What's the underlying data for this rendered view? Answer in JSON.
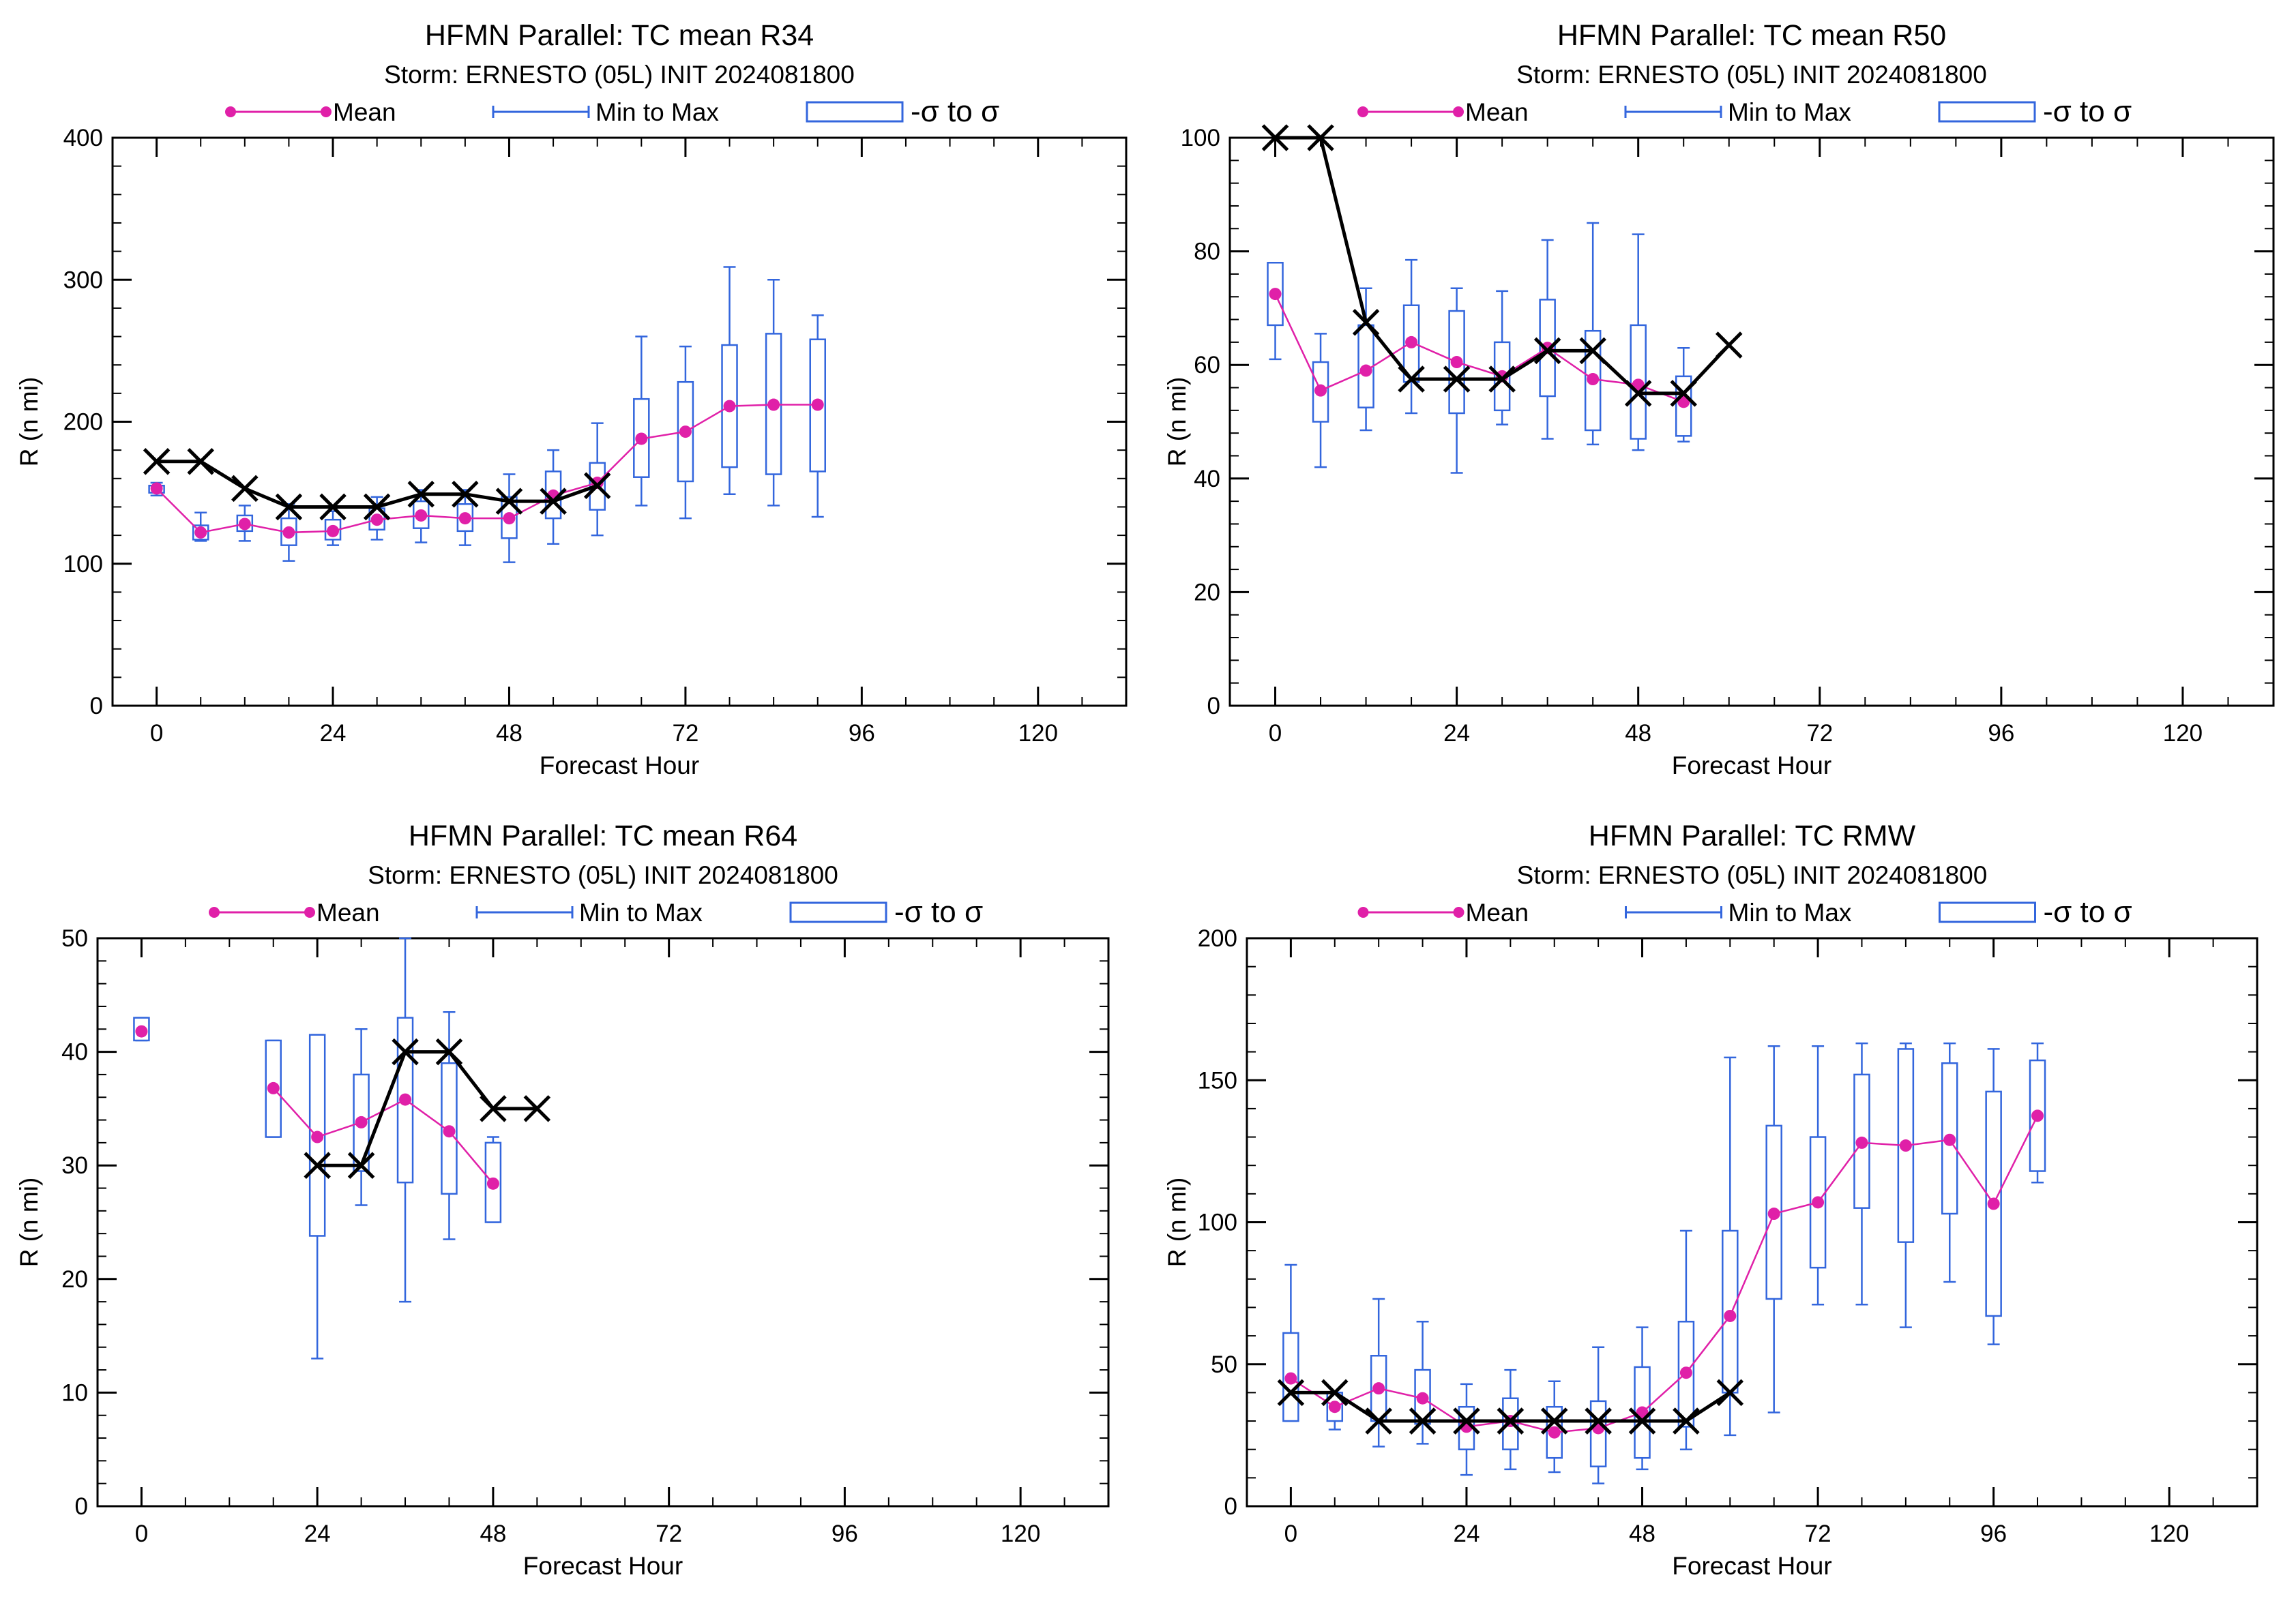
{
  "charts": [
    {
      "type": "box",
      "title": "HFMN Parallel: TC mean R34",
      "subtitle": "Storm: ERNESTO (05L) INIT 2024081800",
      "xlabel": "Forecast Hour",
      "ylabel": "R (n mi)",
      "xlim": [
        -6,
        132
      ],
      "ylim": [
        0,
        400
      ],
      "xticks": [
        0,
        24,
        48,
        72,
        96,
        120
      ],
      "yticks": [
        0,
        100,
        200,
        300,
        400
      ],
      "legend": {
        "mean": "Mean",
        "range": "Min to Max",
        "sigma": "-σ to σ",
        "placement": "top"
      },
      "colors": {
        "mean": "#e020a8",
        "box": "#3366dd",
        "best_track": "#000000"
      },
      "chart_data": {
        "hours": [
          0,
          6,
          12,
          18,
          24,
          30,
          36,
          42,
          48,
          54,
          60,
          66,
          72,
          78,
          84,
          90
        ],
        "mean": [
          153,
          122,
          128,
          122,
          123,
          131,
          134,
          132,
          132,
          148,
          157,
          188,
          193,
          211,
          212,
          212
        ],
        "min": [
          148,
          116,
          116,
          102,
          113,
          117,
          115,
          113,
          101,
          114,
          120,
          141,
          132,
          149,
          141,
          133
        ],
        "max": [
          157,
          136,
          141,
          142,
          137,
          147,
          152,
          152,
          163,
          180,
          199,
          260,
          253,
          309,
          300,
          275
        ],
        "sigma_lo": [
          150,
          117,
          123,
          113,
          117,
          124,
          125,
          123,
          118,
          132,
          138,
          161,
          158,
          168,
          163,
          165
        ],
        "sigma_hi": [
          155,
          127,
          134,
          132,
          131,
          139,
          144,
          142,
          147,
          165,
          171,
          216,
          228,
          254,
          262,
          258
        ],
        "best_track": {
          "hours": [
            0,
            6,
            12,
            18,
            24,
            30,
            36,
            42,
            48,
            54,
            60
          ],
          "values": [
            172,
            172,
            153,
            140,
            140,
            140,
            149,
            149,
            144,
            144,
            155
          ]
        }
      }
    },
    {
      "type": "box",
      "title": "HFMN Parallel: TC mean R50",
      "subtitle": "Storm: ERNESTO (05L) INIT 2024081800",
      "xlabel": "Forecast Hour",
      "ylabel": "R (n mi)",
      "xlim": [
        -6,
        132
      ],
      "ylim": [
        0,
        100
      ],
      "xticks": [
        0,
        24,
        48,
        72,
        96,
        120
      ],
      "yticks": [
        0,
        20,
        40,
        60,
        80,
        100
      ],
      "legend": {
        "mean": "Mean",
        "range": "Min to Max",
        "sigma": "-σ to σ",
        "placement": "top"
      },
      "colors": {
        "mean": "#e020a8",
        "box": "#3366dd",
        "best_track": "#000000"
      },
      "chart_data": {
        "hours": [
          0,
          6,
          12,
          18,
          24,
          30,
          36,
          42,
          48,
          54
        ],
        "mean": [
          72.5,
          55.5,
          59,
          64,
          60.5,
          58,
          63,
          57.5,
          56.5,
          53.5
        ],
        "min": [
          61,
          42,
          48.5,
          51.5,
          41,
          49.5,
          47,
          46,
          45,
          46.5
        ],
        "max": [
          78,
          65.5,
          73.5,
          78.5,
          73.5,
          73,
          82,
          85,
          83,
          63
        ],
        "sigma_lo": [
          67,
          50,
          52.5,
          57,
          51.5,
          52,
          54.5,
          48.5,
          47,
          47.5
        ],
        "sigma_hi": [
          78,
          60.5,
          67,
          70.5,
          69.5,
          64,
          71.5,
          66,
          67,
          58
        ],
        "best_track": {
          "hours": [
            0,
            6,
            12,
            18,
            24,
            30,
            36,
            42,
            48,
            54,
            60
          ],
          "values": [
            100,
            100,
            67.5,
            57.5,
            57.5,
            57.5,
            62.5,
            62.5,
            55,
            55,
            63.5
          ]
        }
      }
    },
    {
      "type": "box",
      "title": "HFMN Parallel: TC mean R64",
      "subtitle": "Storm: ERNESTO (05L) INIT 2024081800",
      "xlabel": "Forecast Hour",
      "ylabel": "R (n mi)",
      "xlim": [
        -6,
        132
      ],
      "ylim": [
        0,
        50
      ],
      "xticks": [
        0,
        24,
        48,
        72,
        96,
        120
      ],
      "yticks": [
        0,
        10,
        20,
        30,
        40,
        50
      ],
      "legend": {
        "mean": "Mean",
        "range": "Min to Max",
        "sigma": "-σ to σ",
        "placement": "top"
      },
      "colors": {
        "mean": "#e020a8",
        "box": "#3366dd",
        "best_track": "#000000"
      },
      "chart_data": {
        "hours": [
          0,
          18,
          24,
          30,
          36,
          42,
          48
        ],
        "mean": [
          41.8,
          36.8,
          32.5,
          33.8,
          35.8,
          33,
          28.4
        ],
        "min": [
          41,
          32.5,
          13,
          26.5,
          18,
          23.5,
          25
        ],
        "max": [
          43,
          41,
          41.5,
          42,
          50,
          43.5,
          32.5
        ],
        "sigma_lo": [
          41,
          32.5,
          23.8,
          29.5,
          28.5,
          27.5,
          25
        ],
        "sigma_hi": [
          43,
          41,
          41.5,
          38,
          43,
          39,
          32
        ],
        "segments": [
          [
            0
          ],
          [
            18,
            24,
            30,
            36,
            42,
            48
          ]
        ],
        "best_track": {
          "hours": [
            24,
            30,
            36,
            42,
            48,
            54
          ],
          "values": [
            30,
            30,
            40,
            40,
            35,
            35
          ]
        }
      }
    },
    {
      "type": "box",
      "title": "HFMN Parallel: TC RMW",
      "subtitle": "Storm: ERNESTO (05L) INIT 2024081800",
      "xlabel": "Forecast Hour",
      "ylabel": "R (n mi)",
      "xlim": [
        -6,
        132
      ],
      "ylim": [
        0,
        200
      ],
      "xticks": [
        0,
        24,
        48,
        72,
        96,
        120
      ],
      "yticks": [
        0,
        50,
        100,
        150,
        200
      ],
      "legend": {
        "mean": "Mean",
        "range": "Min to Max",
        "sigma": "-σ to σ",
        "placement": "top"
      },
      "colors": {
        "mean": "#e020a8",
        "box": "#3366dd",
        "best_track": "#000000"
      },
      "chart_data": {
        "hours": [
          0,
          6,
          12,
          18,
          24,
          30,
          36,
          42,
          48,
          54,
          60,
          66,
          72,
          78,
          84,
          90,
          96,
          102
        ],
        "mean": [
          45,
          35,
          41.5,
          38,
          28,
          30,
          26,
          27.5,
          33,
          47,
          67,
          103,
          107,
          128,
          127,
          129,
          106.5,
          137.5
        ],
        "min": [
          30,
          27,
          21,
          22,
          11,
          13,
          12,
          8,
          13,
          20,
          25,
          33,
          71,
          71,
          63,
          79,
          57,
          114
        ],
        "max": [
          85,
          40,
          73,
          65,
          43,
          48,
          44,
          56,
          63,
          97,
          158,
          162,
          162,
          163,
          163,
          163,
          161,
          163
        ],
        "sigma_lo": [
          30,
          30,
          30,
          29,
          20,
          20,
          17,
          14,
          17,
          28,
          40,
          73,
          84,
          105,
          93,
          103,
          67,
          118
        ],
        "sigma_hi": [
          61,
          40,
          53,
          48,
          35,
          38,
          35,
          37,
          49,
          65,
          97,
          134,
          130,
          152,
          161,
          156,
          146,
          157
        ],
        "best_track": {
          "hours": [
            0,
            6,
            12,
            18,
            24,
            30,
            36,
            42,
            48,
            54,
            60
          ],
          "values": [
            40,
            40,
            30,
            30,
            30,
            30,
            30,
            30,
            30,
            30,
            40
          ]
        }
      }
    }
  ]
}
